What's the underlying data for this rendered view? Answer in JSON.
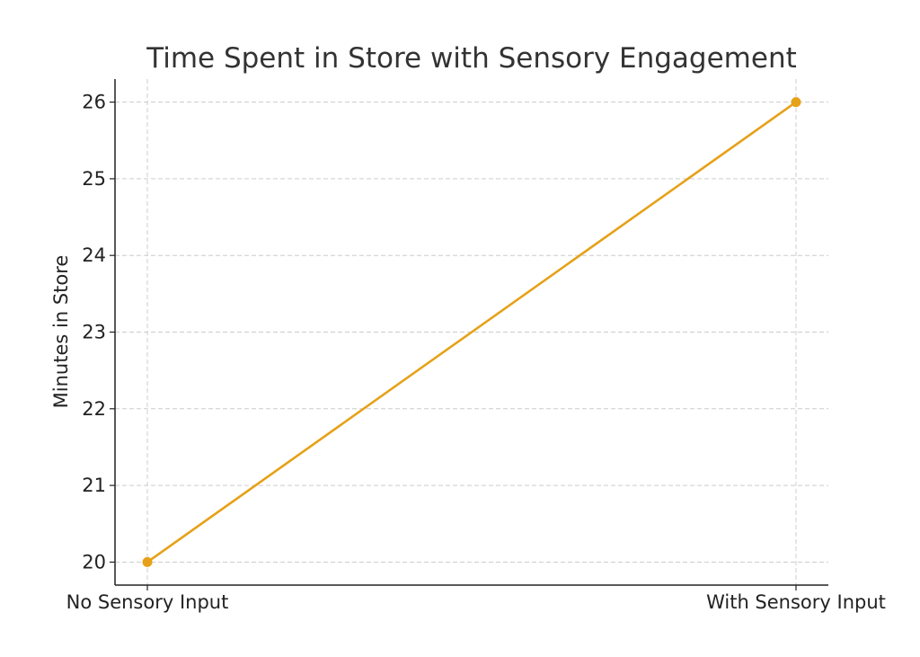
{
  "chart_data": {
    "type": "line",
    "title": "Time Spent in Store with Sensory Engagement",
    "xlabel": "",
    "ylabel": "Minutes in Store",
    "categories": [
      "No Sensory Input",
      "With Sensory Input"
    ],
    "series": [
      {
        "values": [
          20,
          26
        ],
        "color": "#E6A118"
      }
    ],
    "ylim": [
      19.7,
      26.3
    ],
    "yticks": [
      20,
      21,
      22,
      23,
      24,
      25,
      26
    ],
    "grid": true,
    "marker": "circle"
  }
}
